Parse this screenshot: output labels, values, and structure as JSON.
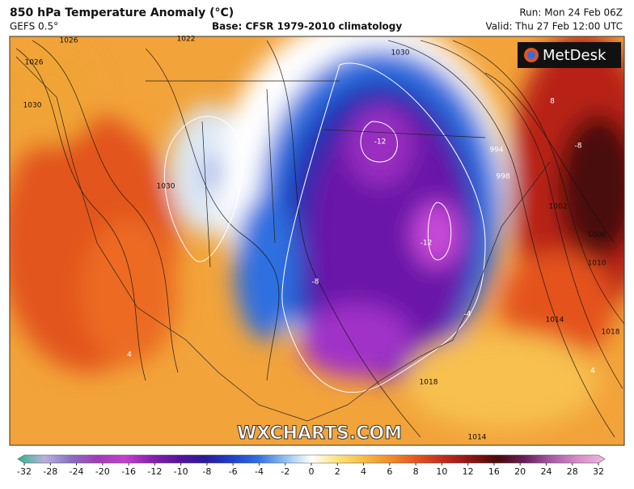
{
  "header": {
    "title": "850 hPa Temperature Anomaly (°C)",
    "model": "GEFS 0.5°",
    "base": "Base: CFSR 1979-2010 climatology",
    "run": "Run: Mon 24 Feb 06Z",
    "valid": "Valid: Thu 27 Feb 12:00 UTC"
  },
  "logo": "MetDesk",
  "watermark": "WXCHARTS.COM",
  "contour_labels": [
    "1026",
    "1022",
    "1026",
    "1030",
    "1030",
    "1030",
    "-12",
    "-12",
    "-8",
    "-4",
    "4",
    "4",
    "-8",
    "8",
    "994",
    "998",
    "1002",
    "1006",
    "1010",
    "1014",
    "1018",
    "1018",
    "1014"
  ],
  "colorbar": {
    "ticks": [
      -32,
      -28,
      -24,
      -20,
      -16,
      -12,
      -10,
      -8,
      -6,
      -4,
      -2,
      0,
      2,
      4,
      6,
      8,
      10,
      12,
      16,
      20,
      24,
      28,
      32
    ],
    "colors": [
      "#2fb68f",
      "#b9b0dc",
      "#8a6fc4",
      "#a13ab7",
      "#c63fcf",
      "#8a1fb0",
      "#5a12a0",
      "#2a1a9a",
      "#1f3fc8",
      "#2f6fe0",
      "#8fc0ee",
      "#ffffff",
      "#fbe27a",
      "#f7bb44",
      "#f08a28",
      "#e4521e",
      "#c2281c",
      "#8c1414",
      "#4a0a0a",
      "#6b1e5a",
      "#a85aa8",
      "#d88cc8",
      "#f0b8e0"
    ]
  }
}
